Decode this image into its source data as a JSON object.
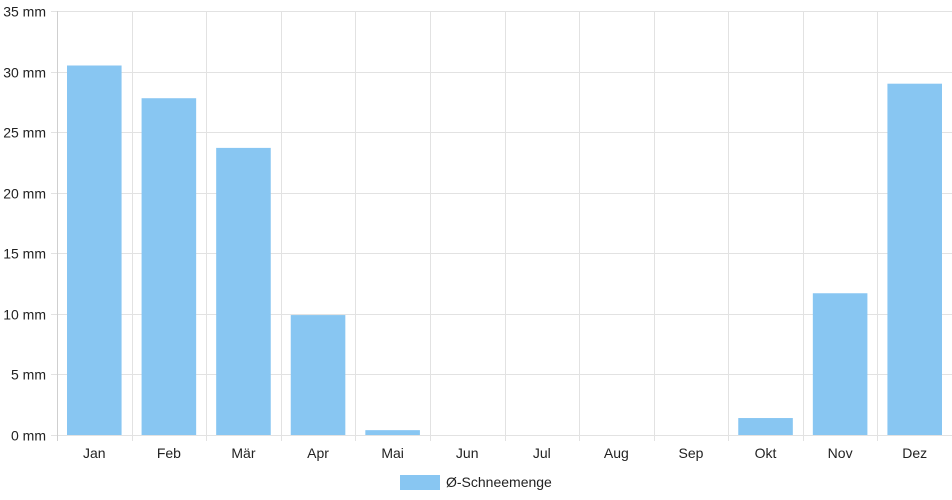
{
  "chart_data": {
    "type": "bar",
    "categories": [
      "Jan",
      "Feb",
      "Mär",
      "Apr",
      "Mai",
      "Jun",
      "Jul",
      "Aug",
      "Sep",
      "Okt",
      "Nov",
      "Dez"
    ],
    "series": [
      {
        "name": "Ø-Schneemenge",
        "values": [
          30.5,
          27.8,
          23.7,
          9.9,
          0.4,
          0,
          0,
          0,
          0,
          1.4,
          11.7,
          29.0
        ],
        "color": "#88c6f2"
      }
    ],
    "ylim": [
      0,
      35
    ],
    "yticks": [
      0,
      5,
      10,
      15,
      20,
      25,
      30,
      35
    ],
    "ytick_suffix": " mm",
    "grid": true,
    "legend_position": "bottom-center"
  }
}
